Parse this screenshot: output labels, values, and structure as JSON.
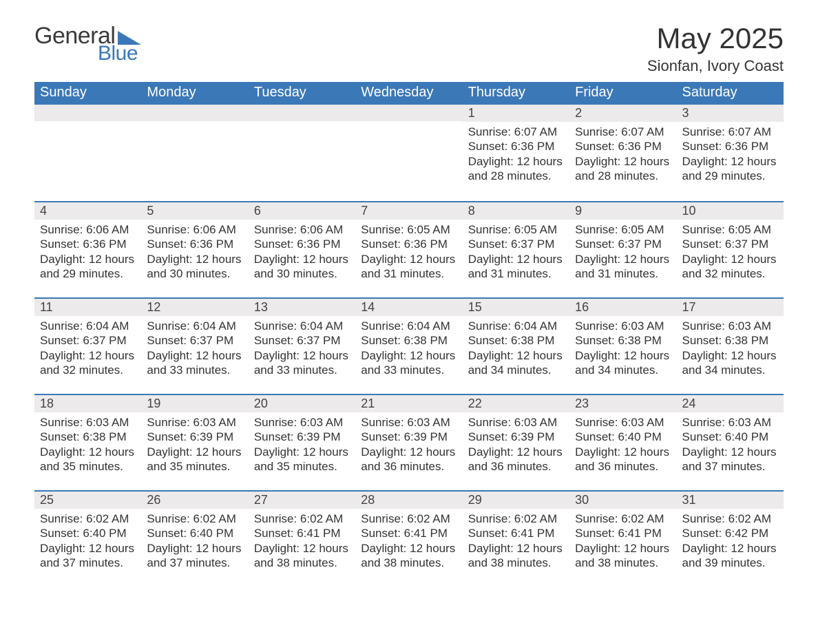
{
  "brand": {
    "text_general": "General",
    "text_blue": "Blue",
    "accent_color": "#3b78b8"
  },
  "header": {
    "month_title": "May 2025",
    "location": "Sionfan, Ivory Coast"
  },
  "style": {
    "header_bg": "#3b78b8",
    "header_text": "#ffffff",
    "daynum_bg": "#eceaea",
    "row_divider": "#3b78b8",
    "body_text": "#333333",
    "page_bg": "#ffffff",
    "title_fontsize_pt": 32,
    "location_fontsize_pt": 17,
    "weekday_fontsize_pt": 15,
    "body_fontsize_pt": 13
  },
  "calendar": {
    "weekdays": [
      "Sunday",
      "Monday",
      "Tuesday",
      "Wednesday",
      "Thursday",
      "Friday",
      "Saturday"
    ],
    "weeks": [
      [
        null,
        null,
        null,
        null,
        {
          "num": "1",
          "sunrise": "Sunrise: 6:07 AM",
          "sunset": "Sunset: 6:36 PM",
          "daylight": "Daylight: 12 hours and 28 minutes."
        },
        {
          "num": "2",
          "sunrise": "Sunrise: 6:07 AM",
          "sunset": "Sunset: 6:36 PM",
          "daylight": "Daylight: 12 hours and 28 minutes."
        },
        {
          "num": "3",
          "sunrise": "Sunrise: 6:07 AM",
          "sunset": "Sunset: 6:36 PM",
          "daylight": "Daylight: 12 hours and 29 minutes."
        }
      ],
      [
        {
          "num": "4",
          "sunrise": "Sunrise: 6:06 AM",
          "sunset": "Sunset: 6:36 PM",
          "daylight": "Daylight: 12 hours and 29 minutes."
        },
        {
          "num": "5",
          "sunrise": "Sunrise: 6:06 AM",
          "sunset": "Sunset: 6:36 PM",
          "daylight": "Daylight: 12 hours and 30 minutes."
        },
        {
          "num": "6",
          "sunrise": "Sunrise: 6:06 AM",
          "sunset": "Sunset: 6:36 PM",
          "daylight": "Daylight: 12 hours and 30 minutes."
        },
        {
          "num": "7",
          "sunrise": "Sunrise: 6:05 AM",
          "sunset": "Sunset: 6:36 PM",
          "daylight": "Daylight: 12 hours and 31 minutes."
        },
        {
          "num": "8",
          "sunrise": "Sunrise: 6:05 AM",
          "sunset": "Sunset: 6:37 PM",
          "daylight": "Daylight: 12 hours and 31 minutes."
        },
        {
          "num": "9",
          "sunrise": "Sunrise: 6:05 AM",
          "sunset": "Sunset: 6:37 PM",
          "daylight": "Daylight: 12 hours and 31 minutes."
        },
        {
          "num": "10",
          "sunrise": "Sunrise: 6:05 AM",
          "sunset": "Sunset: 6:37 PM",
          "daylight": "Daylight: 12 hours and 32 minutes."
        }
      ],
      [
        {
          "num": "11",
          "sunrise": "Sunrise: 6:04 AM",
          "sunset": "Sunset: 6:37 PM",
          "daylight": "Daylight: 12 hours and 32 minutes."
        },
        {
          "num": "12",
          "sunrise": "Sunrise: 6:04 AM",
          "sunset": "Sunset: 6:37 PM",
          "daylight": "Daylight: 12 hours and 33 minutes."
        },
        {
          "num": "13",
          "sunrise": "Sunrise: 6:04 AM",
          "sunset": "Sunset: 6:37 PM",
          "daylight": "Daylight: 12 hours and 33 minutes."
        },
        {
          "num": "14",
          "sunrise": "Sunrise: 6:04 AM",
          "sunset": "Sunset: 6:38 PM",
          "daylight": "Daylight: 12 hours and 33 minutes."
        },
        {
          "num": "15",
          "sunrise": "Sunrise: 6:04 AM",
          "sunset": "Sunset: 6:38 PM",
          "daylight": "Daylight: 12 hours and 34 minutes."
        },
        {
          "num": "16",
          "sunrise": "Sunrise: 6:03 AM",
          "sunset": "Sunset: 6:38 PM",
          "daylight": "Daylight: 12 hours and 34 minutes."
        },
        {
          "num": "17",
          "sunrise": "Sunrise: 6:03 AM",
          "sunset": "Sunset: 6:38 PM",
          "daylight": "Daylight: 12 hours and 34 minutes."
        }
      ],
      [
        {
          "num": "18",
          "sunrise": "Sunrise: 6:03 AM",
          "sunset": "Sunset: 6:38 PM",
          "daylight": "Daylight: 12 hours and 35 minutes."
        },
        {
          "num": "19",
          "sunrise": "Sunrise: 6:03 AM",
          "sunset": "Sunset: 6:39 PM",
          "daylight": "Daylight: 12 hours and 35 minutes."
        },
        {
          "num": "20",
          "sunrise": "Sunrise: 6:03 AM",
          "sunset": "Sunset: 6:39 PM",
          "daylight": "Daylight: 12 hours and 35 minutes."
        },
        {
          "num": "21",
          "sunrise": "Sunrise: 6:03 AM",
          "sunset": "Sunset: 6:39 PM",
          "daylight": "Daylight: 12 hours and 36 minutes."
        },
        {
          "num": "22",
          "sunrise": "Sunrise: 6:03 AM",
          "sunset": "Sunset: 6:39 PM",
          "daylight": "Daylight: 12 hours and 36 minutes."
        },
        {
          "num": "23",
          "sunrise": "Sunrise: 6:03 AM",
          "sunset": "Sunset: 6:40 PM",
          "daylight": "Daylight: 12 hours and 36 minutes."
        },
        {
          "num": "24",
          "sunrise": "Sunrise: 6:03 AM",
          "sunset": "Sunset: 6:40 PM",
          "daylight": "Daylight: 12 hours and 37 minutes."
        }
      ],
      [
        {
          "num": "25",
          "sunrise": "Sunrise: 6:02 AM",
          "sunset": "Sunset: 6:40 PM",
          "daylight": "Daylight: 12 hours and 37 minutes."
        },
        {
          "num": "26",
          "sunrise": "Sunrise: 6:02 AM",
          "sunset": "Sunset: 6:40 PM",
          "daylight": "Daylight: 12 hours and 37 minutes."
        },
        {
          "num": "27",
          "sunrise": "Sunrise: 6:02 AM",
          "sunset": "Sunset: 6:41 PM",
          "daylight": "Daylight: 12 hours and 38 minutes."
        },
        {
          "num": "28",
          "sunrise": "Sunrise: 6:02 AM",
          "sunset": "Sunset: 6:41 PM",
          "daylight": "Daylight: 12 hours and 38 minutes."
        },
        {
          "num": "29",
          "sunrise": "Sunrise: 6:02 AM",
          "sunset": "Sunset: 6:41 PM",
          "daylight": "Daylight: 12 hours and 38 minutes."
        },
        {
          "num": "30",
          "sunrise": "Sunrise: 6:02 AM",
          "sunset": "Sunset: 6:41 PM",
          "daylight": "Daylight: 12 hours and 38 minutes."
        },
        {
          "num": "31",
          "sunrise": "Sunrise: 6:02 AM",
          "sunset": "Sunset: 6:42 PM",
          "daylight": "Daylight: 12 hours and 39 minutes."
        }
      ]
    ]
  }
}
